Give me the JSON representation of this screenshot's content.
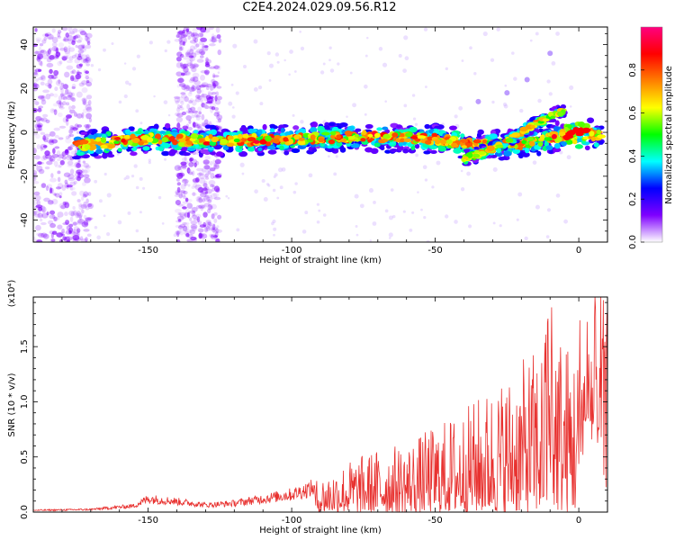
{
  "title": "C2E4.2024.029.09.56.R12",
  "chart_data": [
    {
      "type": "heatmap",
      "xlabel": "Height of straight line (km)",
      "ylabel": "Frequency (Hz)",
      "xlim": [
        -190,
        10
      ],
      "ylim": [
        -50,
        48
      ],
      "x_ticks": [
        -150,
        -100,
        -50,
        0
      ],
      "y_ticks": [
        -40,
        -20,
        0,
        20,
        40
      ],
      "colorbar": {
        "label": "Normalized spectral amplitude",
        "range": [
          0.0,
          1.0
        ],
        "ticks": [
          "0.0",
          "0.2",
          "0.4",
          "0.6",
          "0.8"
        ],
        "colors": [
          "#ffffff",
          "#7f00ff",
          "#0000ff",
          "#00ffff",
          "#00ff00",
          "#ffff00",
          "#ff7f00",
          "#ff0000",
          "#ff0080"
        ]
      },
      "main_trace": {
        "x": [
          -175,
          -150,
          -125,
          -100,
          -75,
          -50,
          -40,
          -30,
          -20,
          -10,
          -5,
          0,
          8
        ],
        "y": [
          -6,
          -3,
          -4,
          -3,
          -2,
          -3,
          -5,
          -6,
          -5,
          -3,
          -1,
          0,
          -2
        ]
      },
      "secondary_trace": {
        "x": [
          -40,
          -30,
          -20,
          -12,
          -5
        ],
        "y": [
          -12,
          -8,
          0,
          6,
          10
        ]
      },
      "upper_trace": {
        "x": [
          -35,
          -25,
          -18,
          -10
        ],
        "y": [
          14,
          18,
          24,
          36
        ]
      },
      "noisy_regions": [
        [
          -190,
          -170
        ],
        [
          -140,
          -125
        ]
      ]
    },
    {
      "type": "line",
      "xlabel": "Height of straight line (km)",
      "ylabel": "SNR (10 * v/v)",
      "multiplier": "(x10⁴)",
      "xlim": [
        -190,
        10
      ],
      "ylim": [
        0,
        1.95
      ],
      "x_ticks": [
        -150,
        -100,
        -50,
        0
      ],
      "y_ticks": [
        "0.0",
        "0.5",
        "1.0",
        "1.5"
      ],
      "color": "#e8312f",
      "envelope": {
        "x": [
          -190,
          -170,
          -155,
          -150,
          -140,
          -130,
          -120,
          -110,
          -100,
          -90,
          -80,
          -70,
          -60,
          -50,
          -40,
          -30,
          -20,
          -12,
          -10,
          -5,
          0,
          5,
          10
        ],
        "y": [
          0.02,
          0.03,
          0.07,
          0.15,
          0.12,
          0.08,
          0.1,
          0.15,
          0.2,
          0.3,
          0.45,
          0.55,
          0.6,
          0.75,
          0.9,
          1.1,
          1.3,
          1.5,
          1.9,
          1.5,
          1.45,
          1.5,
          1.35
        ]
      }
    }
  ]
}
